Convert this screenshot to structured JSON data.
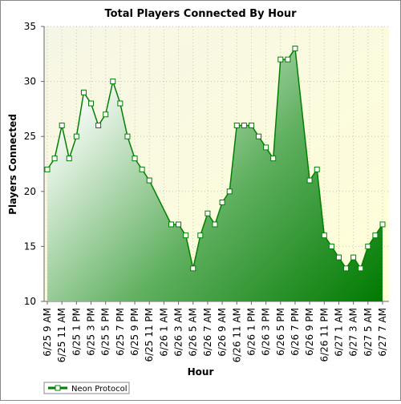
{
  "chart_data": {
    "type": "area",
    "title": "Total Players Connected By Hour",
    "x_label": "Hour",
    "y_label": "Players Connected",
    "categories": [
      "6/25 9 AM",
      null,
      "6/25 11 AM",
      null,
      "6/25 1 PM",
      null,
      "6/25 3 PM",
      null,
      "6/25 5 PM",
      null,
      "6/25 7 PM",
      null,
      "6/25 9 PM",
      null,
      "6/25 11 PM",
      null,
      "6/26 1 AM",
      null,
      "6/26 3 AM",
      null,
      "6/26 5 AM",
      null,
      "6/26 7 AM",
      null,
      "6/26 9 AM",
      null,
      "6/26 11 AM",
      null,
      "6/26 1 PM",
      null,
      "6/26 3 PM",
      null,
      "6/26 5 PM",
      null,
      "6/26 7 PM",
      null,
      "6/26 9 PM",
      null,
      "6/26 11 PM",
      null,
      "6/27 1 AM",
      null,
      "6/27 3 AM",
      null,
      "6/27 5 AM",
      null,
      "6/27 7 AM"
    ],
    "series": [
      {
        "name": "Neon Protocol",
        "color": "#008000",
        "values": [
          22,
          23,
          26,
          23,
          25,
          29,
          28,
          26,
          27,
          30,
          28,
          25,
          23,
          22,
          21,
          null,
          null,
          17,
          17,
          16,
          13,
          16,
          18,
          17,
          19,
          20,
          26,
          26,
          26,
          25,
          24,
          23,
          32,
          32,
          33,
          null,
          21,
          22,
          16,
          15,
          14,
          13,
          14,
          13,
          15,
          16,
          17
        ]
      }
    ],
    "ylim": [
      10,
      35
    ],
    "yticks": [
      10,
      15,
      20,
      25,
      30,
      35
    ],
    "grid": true,
    "connect_gaps": true,
    "legend": "bottom-left"
  }
}
